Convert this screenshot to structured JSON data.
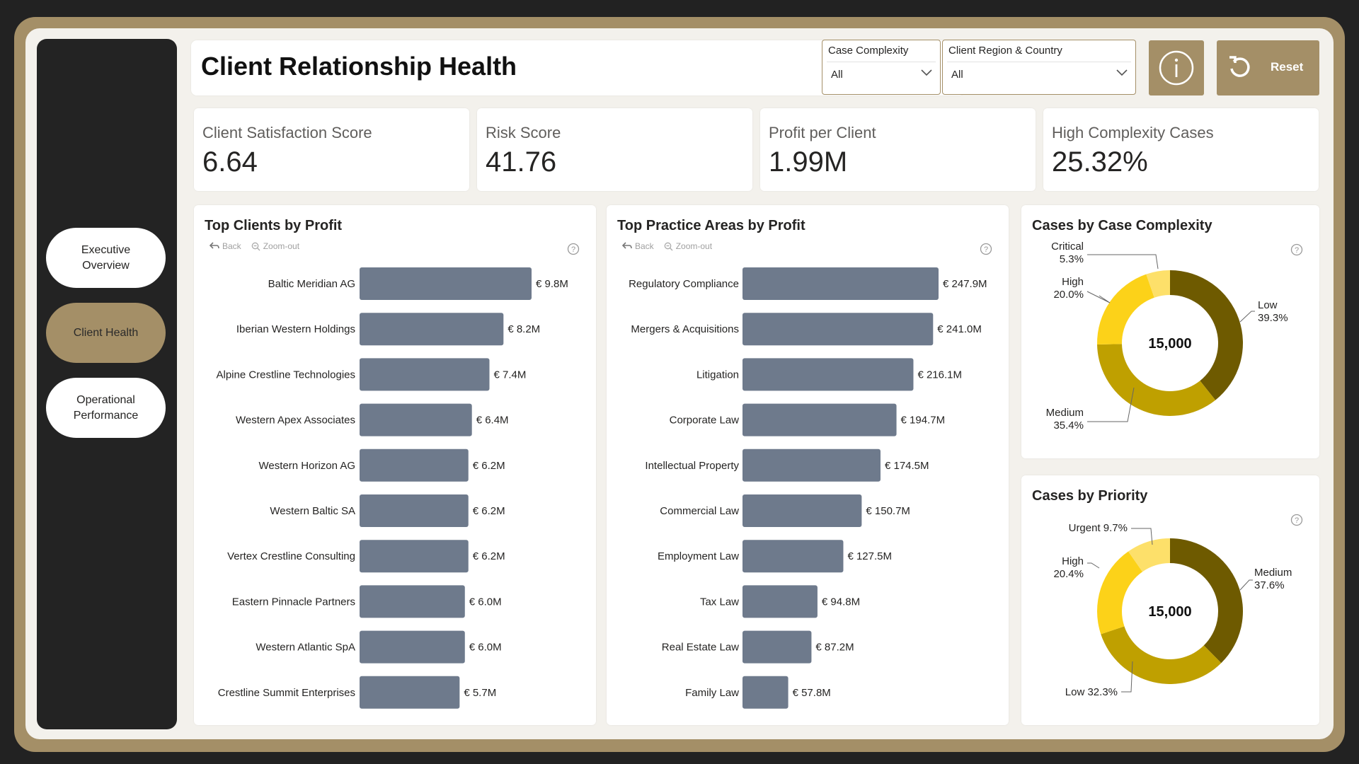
{
  "page_title": "Client Relationship Health",
  "nav": {
    "items": [
      {
        "label": "Executive\nOverview",
        "active": false
      },
      {
        "label": "Client Health",
        "active": true
      },
      {
        "label": "Operational\nPerformance",
        "active": false
      }
    ]
  },
  "slicers": {
    "complexity": {
      "label": "Case Complexity",
      "value": "All"
    },
    "region": {
      "label": "Client Region & Country",
      "value": "All"
    }
  },
  "buttons": {
    "info_icon": "info-icon",
    "reset_label": "Reset",
    "reset_icon": "refresh-icon"
  },
  "kpis": [
    {
      "label": "Client Satisfaction Score",
      "value": "6.64"
    },
    {
      "label": "Risk Score",
      "value": "41.76"
    },
    {
      "label": "Profit per Client",
      "value": "1.99M"
    },
    {
      "label": "High Complexity Cases",
      "value": "25.32%"
    }
  ],
  "drill": {
    "back": "Back",
    "zoom_out": "Zoom-out"
  },
  "colors": {
    "accent": "#a48f67",
    "bar": "#6e7a8c",
    "dark_gold": "#6e5a00",
    "gold": "#bfa000",
    "yellow": "#fcd219",
    "light_yellow": "#fde06a"
  },
  "chart_data": [
    {
      "type": "bar",
      "orientation": "horizontal",
      "title": "Top Clients by Profit",
      "categories": [
        "Baltic Meridian AG",
        "Iberian Western Holdings",
        "Alpine Crestline Technologies",
        "Western Apex Associates",
        "Western Horizon AG",
        "Western Baltic SA",
        "Vertex Crestline Consulting",
        "Eastern Pinnacle Partners",
        "Western Atlantic SpA",
        "Crestline Summit Enterprises"
      ],
      "values": [
        9.8,
        8.2,
        7.4,
        6.4,
        6.2,
        6.2,
        6.2,
        6.0,
        6.0,
        5.7
      ],
      "labels": [
        "€ 9.8M",
        "€ 8.2M",
        "€ 7.4M",
        "€ 6.4M",
        "€ 6.2M",
        "€ 6.2M",
        "€ 6.2M",
        "€ 6.0M",
        "€ 6.0M",
        "€ 5.7M"
      ],
      "max": 9.8
    },
    {
      "type": "bar",
      "orientation": "horizontal",
      "title": "Top Practice Areas by Profit",
      "categories": [
        "Regulatory Compliance",
        "Mergers & Acquisitions",
        "Litigation",
        "Corporate Law",
        "Intellectual Property",
        "Commercial Law",
        "Employment Law",
        "Tax Law",
        "Real Estate Law",
        "Family Law"
      ],
      "values": [
        247.9,
        241.0,
        216.1,
        194.7,
        174.5,
        150.7,
        127.5,
        94.8,
        87.2,
        57.8
      ],
      "labels": [
        "€ 247.9M",
        "€ 241.0M",
        "€ 216.1M",
        "€ 194.7M",
        "€ 174.5M",
        "€ 150.7M",
        "€ 127.5M",
        "€ 94.8M",
        "€ 87.2M",
        "€ 57.8M"
      ],
      "max": 247.9
    },
    {
      "type": "pie",
      "donut": true,
      "title": "Cases by Case Complexity",
      "center_label": "15,000",
      "slices": [
        {
          "name": "Low",
          "percent": 39.3,
          "label": "Low\n39.3%",
          "color": "#6e5a00"
        },
        {
          "name": "Medium",
          "percent": 35.4,
          "label": "Medium\n35.4%",
          "color": "#bfa000"
        },
        {
          "name": "High",
          "percent": 20.0,
          "label": "High\n20.0%",
          "color": "#fcd219"
        },
        {
          "name": "Critical",
          "percent": 5.3,
          "label": "Critical\n5.3%",
          "color": "#fde06a"
        }
      ]
    },
    {
      "type": "pie",
      "donut": true,
      "title": "Cases by Priority",
      "center_label": "15,000",
      "slices": [
        {
          "name": "Medium",
          "percent": 37.6,
          "label": "Medium\n37.6%",
          "color": "#6e5a00"
        },
        {
          "name": "Low",
          "percent": 32.3,
          "label": "Low 32.3%",
          "color": "#bfa000"
        },
        {
          "name": "High",
          "percent": 20.4,
          "label": "High\n20.4%",
          "color": "#fcd219"
        },
        {
          "name": "Urgent",
          "percent": 9.7,
          "label": "Urgent 9.7%",
          "color": "#fde06a"
        }
      ]
    }
  ]
}
